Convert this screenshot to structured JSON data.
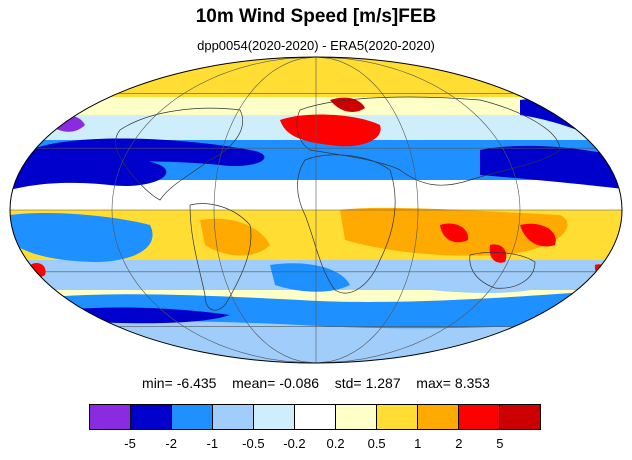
{
  "title": "10m Wind Speed [m/s]FEB",
  "subtitle": "dpp0054(2020-2020) - ERA5(2020-2020)",
  "stats": {
    "min_label": "min=",
    "min_value": "-6.435",
    "mean_label": "mean=",
    "mean_value": "-0.086",
    "std_label": "std=",
    "std_value": "1.287",
    "max_label": "max=",
    "max_value": "8.353"
  },
  "colorbar": {
    "colors": [
      "#8a2be2",
      "#0000cd",
      "#1e90ff",
      "#a0cdfa",
      "#cfeefc",
      "#ffffff",
      "#ffffc8",
      "#ffdd33",
      "#ffaa00",
      "#ff0000",
      "#cc0000"
    ],
    "labels": [
      "-5",
      "-2",
      "-1",
      "-0.5",
      "-0.2",
      "0.2",
      "0.5",
      "1",
      "2",
      "5"
    ]
  },
  "map": {
    "projection": "mollweide",
    "grid": true
  }
}
